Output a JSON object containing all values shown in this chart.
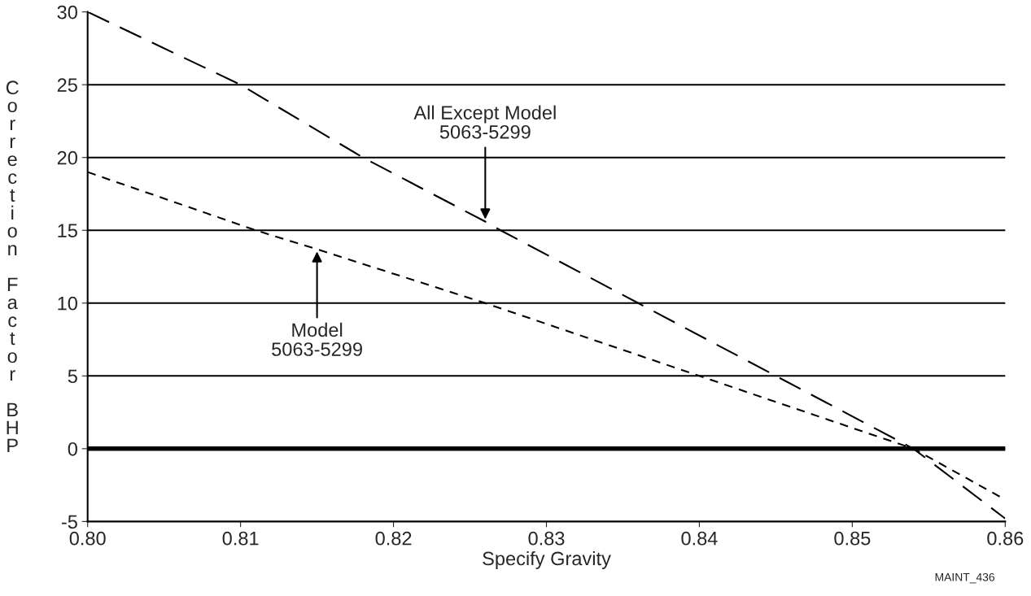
{
  "chart_data": {
    "type": "line",
    "xlabel": "Specify Gravity",
    "ylabel": "Correction Factor BHP",
    "xlim": [
      0.8,
      0.86
    ],
    "xticks": [
      {
        "value": 0.8,
        "label": "0.80"
      },
      {
        "value": 0.81,
        "label": "0.81"
      },
      {
        "value": 0.82,
        "label": "0.82"
      },
      {
        "value": 0.83,
        "label": "0.83"
      },
      {
        "value": 0.84,
        "label": "0.84"
      },
      {
        "value": 0.85,
        "label": "0.85"
      },
      {
        "value": 0.86,
        "label": "0.86"
      }
    ],
    "ylim": [
      -5,
      30
    ],
    "yticks": [
      -5,
      0,
      5,
      10,
      15,
      20,
      25,
      30
    ],
    "grid": "y",
    "line_style": "dashed",
    "marker": "none",
    "series": [
      {
        "color": "#000000",
        "x": [
          0.8,
          0.81,
          0.818,
          0.826,
          0.827,
          0.836,
          0.845,
          0.854,
          0.86
        ],
        "values": [
          30,
          25,
          20,
          15.6,
          15,
          10,
          5,
          0,
          -4.8
        ]
      },
      {
        "color": "#000000",
        "x": [
          0.8,
          0.811,
          0.815,
          0.826,
          0.84,
          0.854,
          0.86
        ],
        "values": [
          19,
          15,
          13.7,
          10,
          5,
          0,
          -3.5
        ]
      }
    ],
    "ref_lines": [
      {
        "axis": "y",
        "value": 0,
        "color": "#000000"
      }
    ],
    "annotations": [
      {
        "text": "All Except Model\n5063-5299",
        "x": 0.826,
        "y": 15.6
      },
      {
        "text": "Model\n5063-5299",
        "x": 0.815,
        "y": 13.7
      },
      "MAINT_436"
    ]
  }
}
